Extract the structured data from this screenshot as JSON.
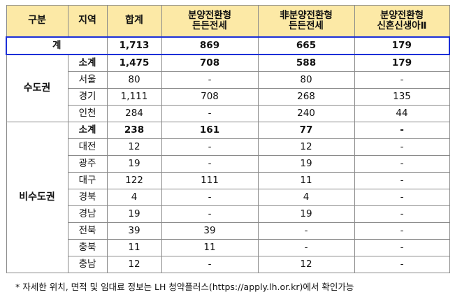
{
  "header": {
    "col1": "구분",
    "col2": "지역",
    "col3": "합계",
    "col4_line1": "분양전환형",
    "col4_line2": "든든전세",
    "col5_line1": "非분양전환형",
    "col5_line2": "든든전세",
    "col6_line1": "분양전환형",
    "col6_line2": "신혼신생아Ⅱ"
  },
  "total": {
    "label": "계",
    "sum": "1,713",
    "a": "869",
    "b": "665",
    "c": "179"
  },
  "capital": {
    "label": "수도권",
    "rows": [
      {
        "name": "소계",
        "sum": "1,475",
        "a": "708",
        "b": "588",
        "c": "179"
      },
      {
        "name": "서울",
        "sum": "80",
        "a": "-",
        "b": "80",
        "c": "-"
      },
      {
        "name": "경기",
        "sum": "1,111",
        "a": "708",
        "b": "268",
        "c": "135"
      },
      {
        "name": "인천",
        "sum": "284",
        "a": "-",
        "b": "240",
        "c": "44"
      }
    ]
  },
  "noncapital": {
    "label": "비수도권",
    "rows": [
      {
        "name": "소계",
        "sum": "238",
        "a": "161",
        "b": "77",
        "c": "-"
      },
      {
        "name": "대전",
        "sum": "12",
        "a": "-",
        "b": "12",
        "c": "-"
      },
      {
        "name": "광주",
        "sum": "19",
        "a": "-",
        "b": "19",
        "c": "-"
      },
      {
        "name": "대구",
        "sum": "122",
        "a": "111",
        "b": "11",
        "c": "-"
      },
      {
        "name": "경북",
        "sum": "4",
        "a": "-",
        "b": "4",
        "c": "-"
      },
      {
        "name": "경남",
        "sum": "19",
        "a": "-",
        "b": "19",
        "c": "-"
      },
      {
        "name": "전북",
        "sum": "39",
        "a": "39",
        "b": "-",
        "c": "-"
      },
      {
        "name": "충북",
        "sum": "11",
        "a": "11",
        "b": "-",
        "c": "-"
      },
      {
        "name": "충남",
        "sum": "12",
        "a": "-",
        "b": "12",
        "c": "-"
      }
    ]
  },
  "note": "* 자세한 위치, 면적 및 임대료 정보는 LH 청약플러스(https://apply.lh.or.kr)에서 확인가능"
}
